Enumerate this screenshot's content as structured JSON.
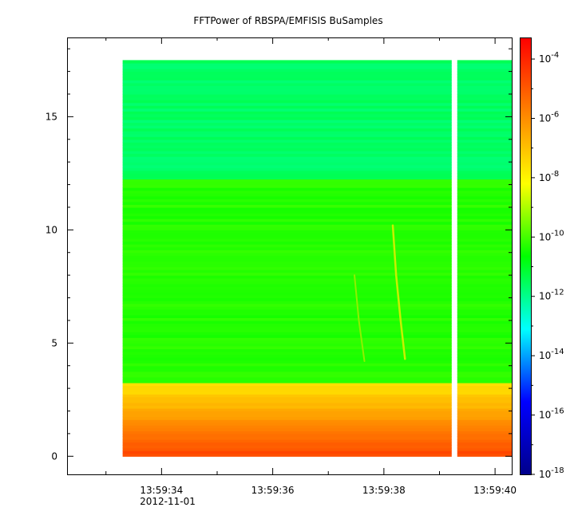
{
  "chart_data": {
    "type": "heatmap",
    "title": "FFTPower of RBSPA/EMFISIS  BuSamples",
    "date_label": "2012-11-01",
    "x_ticks": [
      "13:59:34",
      "13:59:36",
      "13:59:38",
      "13:59:40"
    ],
    "x_tick_values_sec": [
      34,
      36,
      38,
      40
    ],
    "x_range_sec": [
      32.3,
      40.3
    ],
    "data_x_range_sec": [
      33.3,
      40.3
    ],
    "data_gap_sec": [
      39.22,
      39.32
    ],
    "y_ticks": [
      "0",
      "5",
      "10",
      "15"
    ],
    "y_tick_values": [
      0,
      5,
      10,
      15
    ],
    "y_range": [
      -0.8,
      18.5
    ],
    "data_y_range": [
      0,
      17.5
    ],
    "colorbar": {
      "scale": "log",
      "range_exp": [
        -18,
        -3.3
      ],
      "ticks": [
        {
          "base": "10",
          "exp": "-4"
        },
        {
          "base": "10",
          "exp": "-6"
        },
        {
          "base": "10",
          "exp": "-8"
        },
        {
          "base": "10",
          "exp": "-10"
        },
        {
          "base": "10",
          "exp": "-12"
        },
        {
          "base": "10",
          "exp": "-14"
        },
        {
          "base": "10",
          "exp": "-16"
        },
        {
          "base": "10",
          "exp": "-18"
        }
      ],
      "tick_exps": [
        -4,
        -6,
        -8,
        -10,
        -12,
        -14,
        -16,
        -18
      ],
      "colors": [
        "#00008b",
        "#0000ff",
        "#00ffff",
        "#00ff00",
        "#ffff00",
        "#ff8000",
        "#ff0000"
      ]
    },
    "power_levels": [
      {
        "band": "0-0.5",
        "log10_power": -4.8
      },
      {
        "band": "0.5-1.5",
        "log10_power": -5.8
      },
      {
        "band": "1.5-3.3",
        "log10_power": -7.5
      },
      {
        "band": "3.3-12.2",
        "log10_power": -10.3
      },
      {
        "band": "12.2-17.5",
        "log10_power": -11.6
      }
    ],
    "features": [
      {
        "name": "whistler-trace-1",
        "points_sec_khz": [
          [
            38.16,
            10.2
          ],
          [
            38.22,
            8.0
          ],
          [
            38.3,
            6.0
          ],
          [
            38.38,
            4.3
          ]
        ]
      },
      {
        "name": "whistler-trace-2",
        "points_sec_khz": [
          [
            37.47,
            8.0
          ],
          [
            37.55,
            6.0
          ],
          [
            37.65,
            4.2
          ]
        ]
      }
    ]
  }
}
